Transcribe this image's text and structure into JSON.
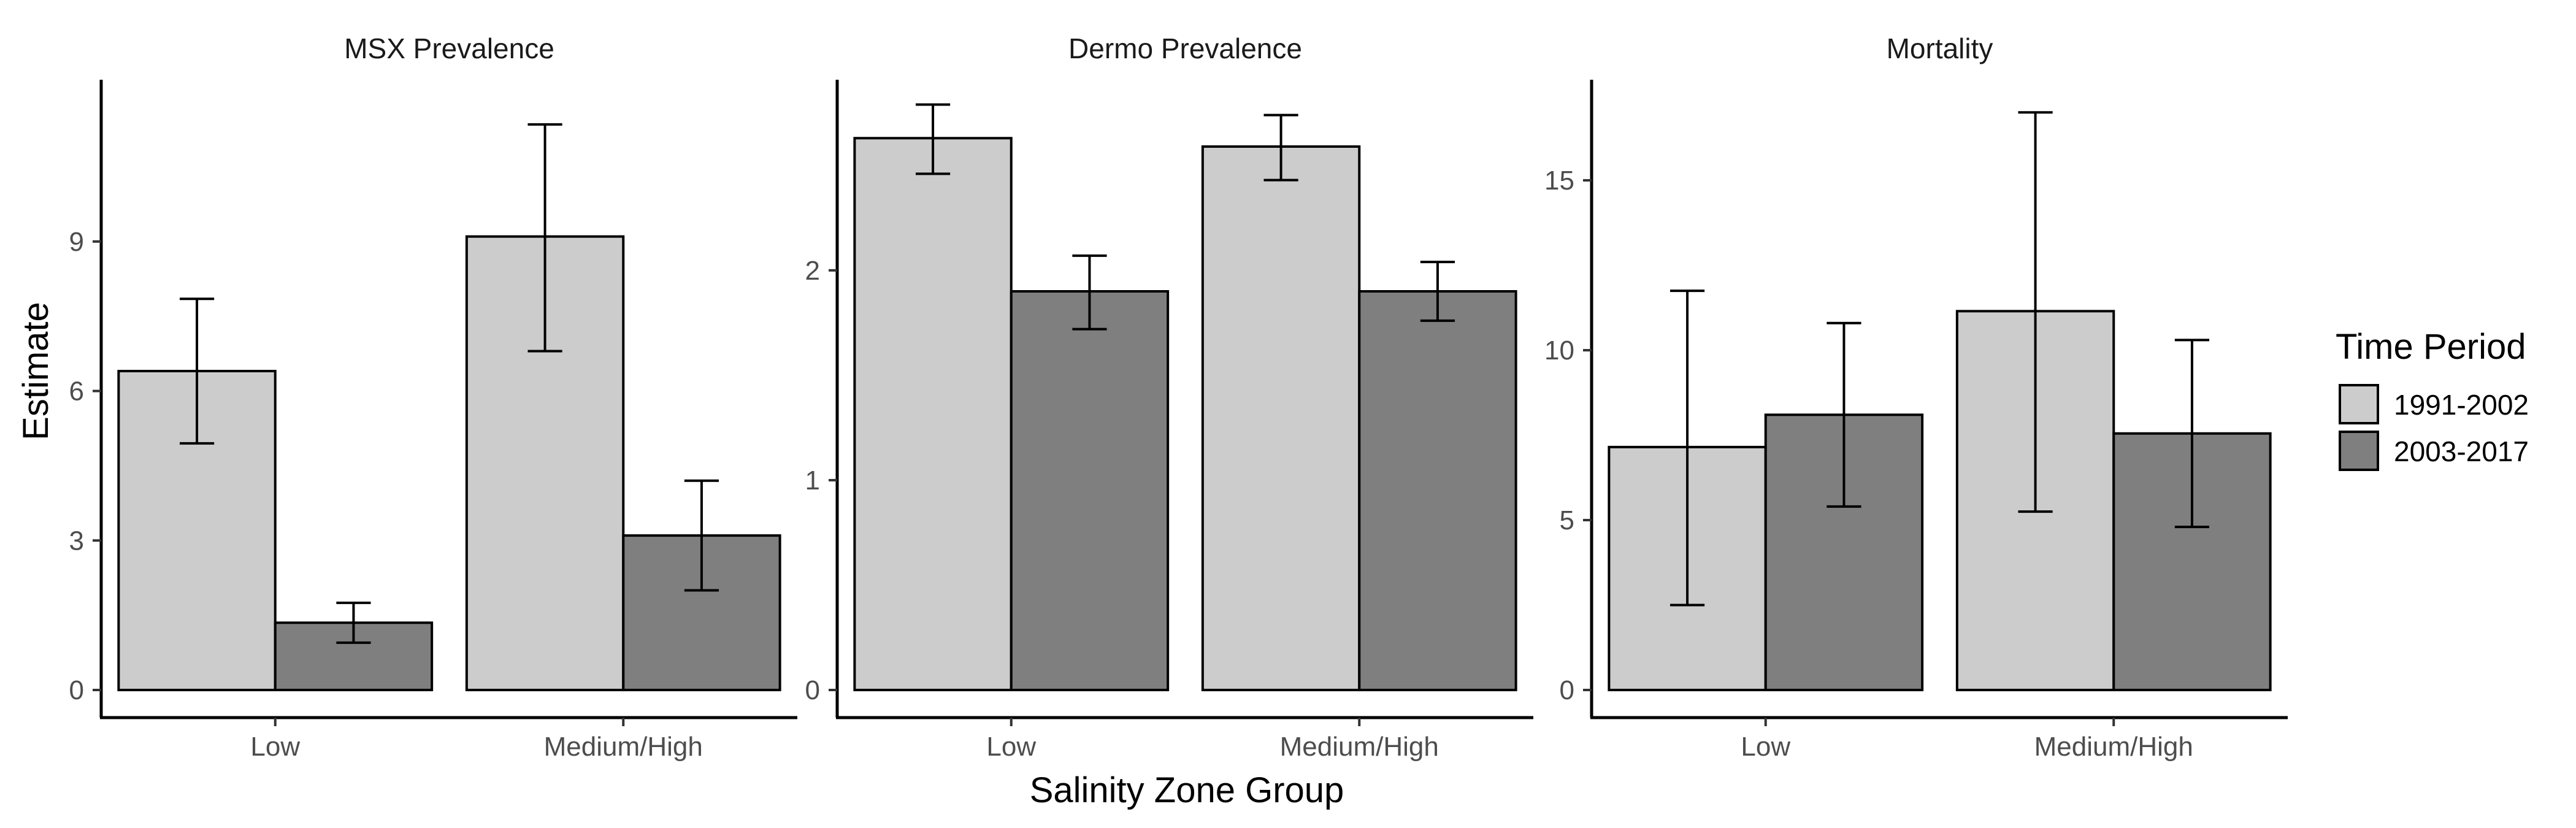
{
  "chart_data": {
    "type": "bar",
    "xlabel": "Salinity Zone Group",
    "ylabel": "Estimate",
    "legend": {
      "title": "Time Period",
      "placement": "right",
      "entries": [
        {
          "name": "1991-2002",
          "color": "#cccccc"
        },
        {
          "name": "2003-2017",
          "color": "#7f7f7f"
        }
      ]
    },
    "categories": [
      "Low",
      "Medium/High"
    ],
    "panels": [
      {
        "title": "MSX Prevalence",
        "ylim": [
          0,
          12
        ],
        "yticks": [
          0,
          3,
          6,
          9
        ],
        "series": [
          {
            "name": "1991-2002",
            "values": [
              6.4,
              9.1
            ],
            "lower": [
              4.95,
              6.8
            ],
            "upper": [
              7.85,
              11.35
            ]
          },
          {
            "name": "2003-2017",
            "values": [
              1.35,
              3.1
            ],
            "lower": [
              0.95,
              2.0
            ],
            "upper": [
              1.75,
              4.2
            ]
          }
        ]
      },
      {
        "title": "Dermo Prevalence",
        "ylim": [
          0,
          2.85
        ],
        "yticks": [
          0,
          1,
          2
        ],
        "series": [
          {
            "name": "1991-2002",
            "values": [
              2.63,
              2.59
            ],
            "lower": [
              2.46,
              2.43
            ],
            "upper": [
              2.79,
              2.74
            ]
          },
          {
            "name": "2003-2017",
            "values": [
              1.9,
              1.9
            ],
            "lower": [
              1.72,
              1.76
            ],
            "upper": [
              2.07,
              2.04
            ]
          }
        ]
      },
      {
        "title": "Mortality",
        "ylim": [
          0,
          17.6
        ],
        "yticks": [
          0,
          5,
          10,
          15
        ],
        "series": [
          {
            "name": "1991-2002",
            "values": [
              7.15,
              11.15
            ],
            "lower": [
              2.5,
              5.25
            ],
            "upper": [
              11.75,
              17.0
            ]
          },
          {
            "name": "2003-2017",
            "values": [
              8.1,
              7.55
            ],
            "lower": [
              5.4,
              4.8
            ],
            "upper": [
              10.8,
              10.3
            ]
          }
        ]
      }
    ]
  }
}
